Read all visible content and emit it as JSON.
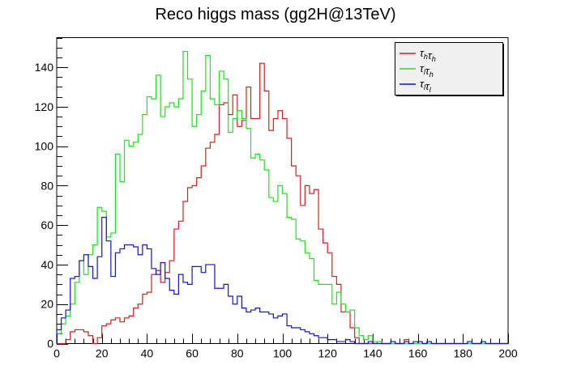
{
  "chart_data": {
    "type": "histogram",
    "title": "Reco higgs mass (gg2H@13TeV)",
    "xlabel": "",
    "ylabel": "",
    "xlim": [
      0,
      200
    ],
    "ylim": [
      0,
      155
    ],
    "x_ticks": [
      0,
      20,
      40,
      60,
      80,
      100,
      120,
      140,
      160,
      180,
      200
    ],
    "y_ticks": [
      0,
      20,
      40,
      60,
      80,
      100,
      120,
      140
    ],
    "bin_width": 2,
    "grid": false,
    "legend_position": "top-right",
    "series": [
      {
        "name": "τ_h τ_h",
        "label_main": [
          "τ",
          "τ"
        ],
        "label_sub": [
          "h",
          "h"
        ],
        "color": "#d42020",
        "values": [
          0,
          0,
          2,
          6,
          7,
          7,
          6,
          4,
          0,
          3,
          9,
          10,
          12,
          13,
          11,
          13,
          14,
          18,
          20,
          25,
          26,
          35,
          37,
          31,
          36,
          42,
          58,
          62,
          72,
          79,
          80,
          84,
          90,
          99,
          102,
          106,
          121,
          122,
          116,
          126,
          110,
          113,
          130,
          114,
          114,
          142,
          128,
          108,
          114,
          118,
          114,
          104,
          90,
          85,
          70,
          80,
          76,
          78,
          58,
          51,
          46,
          34,
          30,
          16,
          16,
          8,
          3,
          0,
          0,
          0,
          0,
          1,
          0,
          0,
          1,
          0,
          0,
          2,
          0,
          0,
          1,
          0,
          0,
          0,
          0,
          0,
          0,
          0,
          0,
          0,
          0,
          0,
          0,
          0,
          0,
          0,
          0,
          0,
          0,
          0
        ]
      },
      {
        "name": "τ_l τ_h",
        "label_main": [
          "τ",
          "τ"
        ],
        "label_sub": [
          "l",
          "h"
        ],
        "color": "#22e022",
        "values": [
          5,
          10,
          14,
          20,
          31,
          42,
          35,
          45,
          50,
          69,
          67,
          54,
          56,
          96,
          82,
          103,
          100,
          102,
          106,
          116,
          125,
          124,
          136,
          115,
          120,
          122,
          120,
          124,
          148,
          134,
          110,
          116,
          128,
          146,
          124,
          121,
          138,
          134,
          107,
          114,
          118,
          114,
          109,
          94,
          96,
          93,
          88,
          74,
          72,
          80,
          76,
          64,
          63,
          53,
          52,
          46,
          43,
          32,
          30,
          30,
          30,
          20,
          26,
          20,
          16,
          17,
          8,
          4,
          2,
          4,
          1,
          1,
          0,
          0,
          0,
          0,
          0,
          0,
          0,
          0,
          0,
          0,
          0,
          0,
          0,
          0,
          0,
          0,
          0,
          0,
          0,
          0,
          0,
          0,
          0,
          0,
          0,
          0,
          0,
          0
        ]
      },
      {
        "name": "τ_l τ_l",
        "label_main": [
          "τ",
          "τ"
        ],
        "label_sub": [
          "l",
          "l"
        ],
        "color": "#1515c8",
        "values": [
          7,
          13,
          17,
          33,
          34,
          42,
          45,
          39,
          33,
          44,
          64,
          52,
          34,
          46,
          48,
          50,
          50,
          49,
          45,
          50,
          48,
          38,
          35,
          41,
          33,
          27,
          25,
          35,
          31,
          30,
          39,
          39,
          36,
          40,
          40,
          28,
          28,
          30,
          24,
          20,
          24,
          18,
          16,
          17,
          18,
          16,
          16,
          15,
          13,
          14,
          15,
          9,
          8,
          8,
          7,
          6,
          5,
          4,
          3,
          3,
          2,
          2,
          1,
          1,
          2,
          1,
          0,
          0,
          0,
          1,
          0,
          0,
          0,
          0,
          1,
          0,
          0,
          1,
          0,
          1,
          1,
          0,
          1,
          0,
          0,
          0,
          0,
          0,
          0,
          0,
          0,
          1,
          0,
          0,
          1,
          0,
          0,
          0,
          0,
          0
        ]
      }
    ]
  }
}
